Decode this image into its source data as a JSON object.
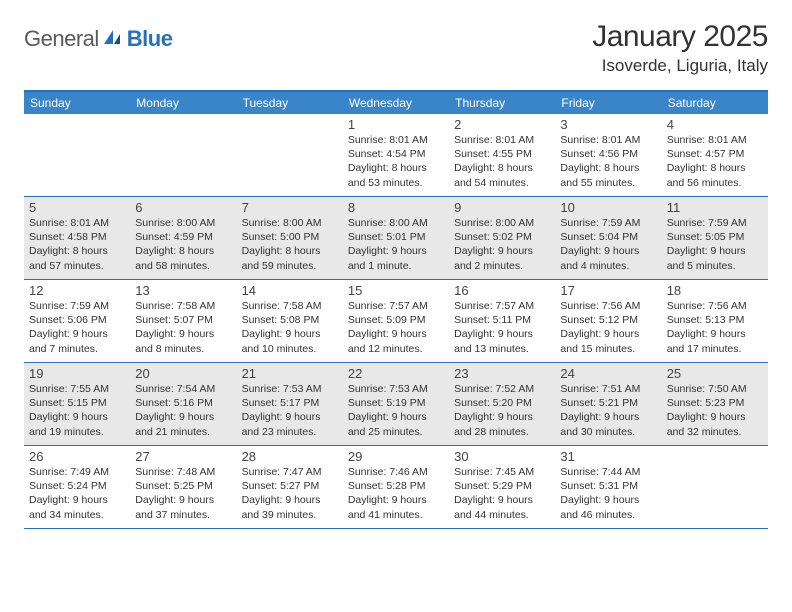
{
  "brand": {
    "general": "General",
    "blue": "Blue"
  },
  "title": "January 2025",
  "location": "Isoverde, Liguria, Italy",
  "colors": {
    "header_bg": "#3a85c9",
    "border": "#2a70b8",
    "shaded": "#e8e8e8",
    "text": "#333333"
  },
  "weekdays": [
    "Sunday",
    "Monday",
    "Tuesday",
    "Wednesday",
    "Thursday",
    "Friday",
    "Saturday"
  ],
  "weeks": [
    [
      null,
      null,
      null,
      {
        "n": "1",
        "sr": "8:01 AM",
        "ss": "4:54 PM",
        "dl": "8 hours and 53 minutes."
      },
      {
        "n": "2",
        "sr": "8:01 AM",
        "ss": "4:55 PM",
        "dl": "8 hours and 54 minutes."
      },
      {
        "n": "3",
        "sr": "8:01 AM",
        "ss": "4:56 PM",
        "dl": "8 hours and 55 minutes."
      },
      {
        "n": "4",
        "sr": "8:01 AM",
        "ss": "4:57 PM",
        "dl": "8 hours and 56 minutes."
      }
    ],
    [
      {
        "n": "5",
        "sr": "8:01 AM",
        "ss": "4:58 PM",
        "dl": "8 hours and 57 minutes."
      },
      {
        "n": "6",
        "sr": "8:00 AM",
        "ss": "4:59 PM",
        "dl": "8 hours and 58 minutes."
      },
      {
        "n": "7",
        "sr": "8:00 AM",
        "ss": "5:00 PM",
        "dl": "8 hours and 59 minutes."
      },
      {
        "n": "8",
        "sr": "8:00 AM",
        "ss": "5:01 PM",
        "dl": "9 hours and 1 minute."
      },
      {
        "n": "9",
        "sr": "8:00 AM",
        "ss": "5:02 PM",
        "dl": "9 hours and 2 minutes."
      },
      {
        "n": "10",
        "sr": "7:59 AM",
        "ss": "5:04 PM",
        "dl": "9 hours and 4 minutes."
      },
      {
        "n": "11",
        "sr": "7:59 AM",
        "ss": "5:05 PM",
        "dl": "9 hours and 5 minutes."
      }
    ],
    [
      {
        "n": "12",
        "sr": "7:59 AM",
        "ss": "5:06 PM",
        "dl": "9 hours and 7 minutes."
      },
      {
        "n": "13",
        "sr": "7:58 AM",
        "ss": "5:07 PM",
        "dl": "9 hours and 8 minutes."
      },
      {
        "n": "14",
        "sr": "7:58 AM",
        "ss": "5:08 PM",
        "dl": "9 hours and 10 minutes."
      },
      {
        "n": "15",
        "sr": "7:57 AM",
        "ss": "5:09 PM",
        "dl": "9 hours and 12 minutes."
      },
      {
        "n": "16",
        "sr": "7:57 AM",
        "ss": "5:11 PM",
        "dl": "9 hours and 13 minutes."
      },
      {
        "n": "17",
        "sr": "7:56 AM",
        "ss": "5:12 PM",
        "dl": "9 hours and 15 minutes."
      },
      {
        "n": "18",
        "sr": "7:56 AM",
        "ss": "5:13 PM",
        "dl": "9 hours and 17 minutes."
      }
    ],
    [
      {
        "n": "19",
        "sr": "7:55 AM",
        "ss": "5:15 PM",
        "dl": "9 hours and 19 minutes."
      },
      {
        "n": "20",
        "sr": "7:54 AM",
        "ss": "5:16 PM",
        "dl": "9 hours and 21 minutes."
      },
      {
        "n": "21",
        "sr": "7:53 AM",
        "ss": "5:17 PM",
        "dl": "9 hours and 23 minutes."
      },
      {
        "n": "22",
        "sr": "7:53 AM",
        "ss": "5:19 PM",
        "dl": "9 hours and 25 minutes."
      },
      {
        "n": "23",
        "sr": "7:52 AM",
        "ss": "5:20 PM",
        "dl": "9 hours and 28 minutes."
      },
      {
        "n": "24",
        "sr": "7:51 AM",
        "ss": "5:21 PM",
        "dl": "9 hours and 30 minutes."
      },
      {
        "n": "25",
        "sr": "7:50 AM",
        "ss": "5:23 PM",
        "dl": "9 hours and 32 minutes."
      }
    ],
    [
      {
        "n": "26",
        "sr": "7:49 AM",
        "ss": "5:24 PM",
        "dl": "9 hours and 34 minutes."
      },
      {
        "n": "27",
        "sr": "7:48 AM",
        "ss": "5:25 PM",
        "dl": "9 hours and 37 minutes."
      },
      {
        "n": "28",
        "sr": "7:47 AM",
        "ss": "5:27 PM",
        "dl": "9 hours and 39 minutes."
      },
      {
        "n": "29",
        "sr": "7:46 AM",
        "ss": "5:28 PM",
        "dl": "9 hours and 41 minutes."
      },
      {
        "n": "30",
        "sr": "7:45 AM",
        "ss": "5:29 PM",
        "dl": "9 hours and 44 minutes."
      },
      {
        "n": "31",
        "sr": "7:44 AM",
        "ss": "5:31 PM",
        "dl": "9 hours and 46 minutes."
      },
      null
    ]
  ],
  "labels": {
    "sunrise": "Sunrise:",
    "sunset": "Sunset:",
    "daylight": "Daylight:"
  }
}
